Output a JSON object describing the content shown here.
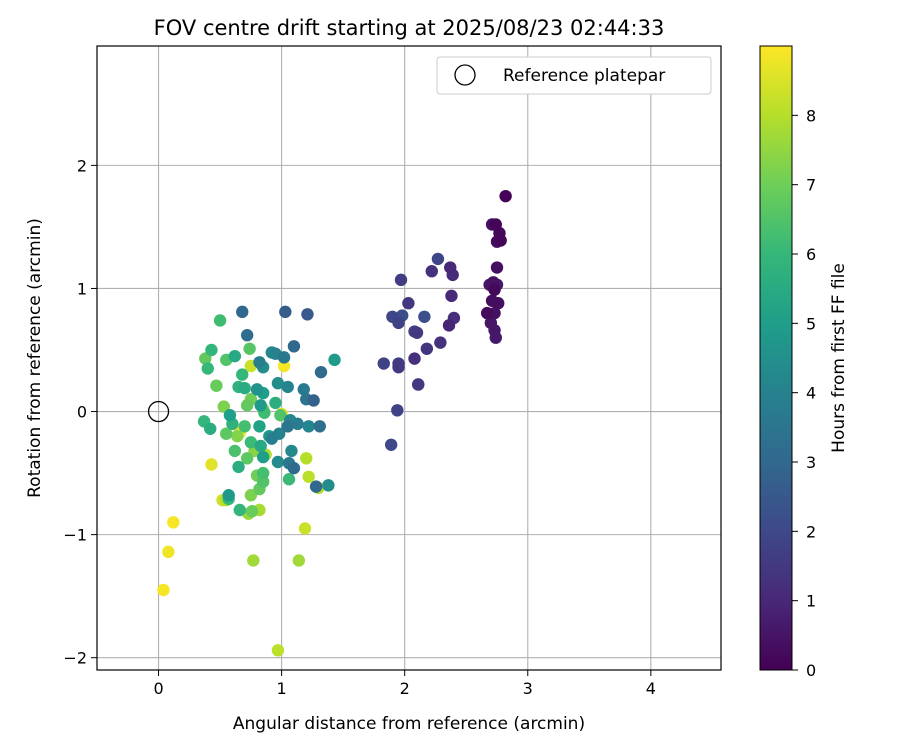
{
  "chart_data": {
    "type": "scatter",
    "title": "FOV centre drift starting at 2025/08/23 02:44:33",
    "xlabel": "Angular distance from reference (arcmin)",
    "ylabel": "Rotation from reference (arcmin)",
    "xlim": [
      -0.5,
      4.57
    ],
    "ylim": [
      -2.1,
      2.97
    ],
    "xticks": [
      "0",
      "1",
      "2",
      "3",
      "4"
    ],
    "yticks": [
      "−2",
      "−1",
      "0",
      "1",
      "2"
    ],
    "xtick_values": [
      0,
      1,
      2,
      3,
      4
    ],
    "ytick_values": [
      -2,
      -1,
      0,
      1,
      2
    ],
    "grid": true,
    "legend": {
      "position": "top-right",
      "entries": [
        {
          "label": "Reference platepar",
          "marker": "open-circle"
        }
      ]
    },
    "reference_point": {
      "x": 0,
      "y": 0
    },
    "colorbar": {
      "label": "Hours from first FF file",
      "colormap": "viridis",
      "range": [
        0,
        9
      ],
      "ticks": [
        "0",
        "1",
        "2",
        "3",
        "4",
        "5",
        "6",
        "7",
        "8"
      ],
      "tick_values": [
        0,
        1,
        2,
        3,
        4,
        5,
        6,
        7,
        8
      ]
    },
    "colormap_stops": [
      "#440154",
      "#482878",
      "#3e4989",
      "#31688e",
      "#26828e",
      "#1f9e89",
      "#35b779",
      "#6ece58",
      "#b5de2b",
      "#fde725"
    ],
    "points": [
      [
        2.82,
        1.75,
        0.05
      ],
      [
        2.74,
        1.52,
        0.1
      ],
      [
        2.71,
        1.52,
        0.4
      ],
      [
        2.77,
        1.45,
        0.2
      ],
      [
        2.78,
        1.39,
        0.15
      ],
      [
        2.75,
        1.38,
        0.3
      ],
      [
        2.75,
        1.17,
        0.35
      ],
      [
        2.72,
        1.05,
        0.45
      ],
      [
        2.69,
        1.03,
        0.5
      ],
      [
        2.75,
        1.03,
        0.6
      ],
      [
        2.73,
        0.99,
        0.2
      ],
      [
        2.71,
        0.9,
        0.3
      ],
      [
        2.76,
        0.88,
        0.35
      ],
      [
        2.73,
        0.8,
        0.4
      ],
      [
        2.67,
        0.8,
        0.25
      ],
      [
        2.7,
        0.72,
        0.5
      ],
      [
        2.73,
        0.66,
        0.55
      ],
      [
        2.74,
        0.6,
        0.6
      ],
      [
        2.27,
        1.24,
        1.9
      ],
      [
        2.22,
        1.14,
        1.3
      ],
      [
        2.37,
        1.17,
        1.0
      ],
      [
        2.39,
        1.11,
        1.1
      ],
      [
        1.97,
        1.07,
        1.6
      ],
      [
        2.38,
        0.94,
        1.0
      ],
      [
        2.03,
        0.88,
        1.4
      ],
      [
        1.9,
        0.77,
        1.9
      ],
      [
        1.98,
        0.78,
        2.1
      ],
      [
        1.95,
        0.72,
        1.8
      ],
      [
        2.16,
        0.77,
        2.2
      ],
      [
        2.4,
        0.76,
        1.2
      ],
      [
        2.36,
        0.7,
        0.9
      ],
      [
        2.08,
        0.65,
        1.7
      ],
      [
        2.1,
        0.64,
        1.5
      ],
      [
        2.29,
        0.56,
        1.3
      ],
      [
        2.18,
        0.51,
        1.4
      ],
      [
        2.08,
        0.43,
        1.2
      ],
      [
        1.95,
        0.39,
        1.6
      ],
      [
        1.95,
        0.36,
        1.5
      ],
      [
        1.83,
        0.39,
        1.8
      ],
      [
        2.11,
        0.22,
        1.5
      ],
      [
        2.11,
        0.22,
        1.7
      ],
      [
        1.94,
        0.01,
        1.8
      ],
      [
        1.89,
        -0.27,
        2.0
      ],
      [
        0.68,
        0.81,
        3.0
      ],
      [
        1.03,
        0.81,
        2.6
      ],
      [
        1.21,
        0.79,
        2.5
      ],
      [
        0.5,
        0.74,
        6.2
      ],
      [
        0.72,
        0.62,
        3.2
      ],
      [
        1.1,
        0.53,
        3.0
      ],
      [
        0.74,
        0.51,
        6.6
      ],
      [
        0.43,
        0.5,
        5.9
      ],
      [
        0.38,
        0.43,
        6.8
      ],
      [
        0.55,
        0.42,
        6.5
      ],
      [
        0.92,
        0.48,
        4.2
      ],
      [
        0.95,
        0.47,
        4.0
      ],
      [
        0.82,
        0.4,
        3.9
      ],
      [
        1.43,
        0.42,
        4.9
      ],
      [
        1.02,
        0.44,
        3.6
      ],
      [
        1.02,
        0.37,
        8.9
      ],
      [
        0.75,
        0.37,
        8.3
      ],
      [
        0.4,
        0.35,
        6.0
      ],
      [
        0.62,
        0.45,
        5.4
      ],
      [
        0.85,
        0.36,
        4.4
      ],
      [
        1.32,
        0.32,
        3.1
      ],
      [
        0.68,
        0.3,
        6.0
      ],
      [
        0.47,
        0.21,
        6.9
      ],
      [
        0.7,
        0.19,
        5.5
      ],
      [
        0.65,
        0.2,
        5.8
      ],
      [
        0.8,
        0.18,
        4.6
      ],
      [
        0.97,
        0.23,
        4.4
      ],
      [
        1.05,
        0.2,
        4.1
      ],
      [
        0.85,
        0.15,
        5.0
      ],
      [
        1.18,
        0.18,
        3.7
      ],
      [
        1.2,
        0.1,
        3.5
      ],
      [
        1.26,
        0.09,
        2.8
      ],
      [
        0.75,
        0.1,
        7.0
      ],
      [
        0.72,
        0.05,
        6.8
      ],
      [
        0.53,
        0.04,
        7.2
      ],
      [
        0.85,
        0.02,
        7.4
      ],
      [
        0.86,
        -0.01,
        6.2
      ],
      [
        0.95,
        0.07,
        5.6
      ],
      [
        0.83,
        0.05,
        4.9
      ],
      [
        1.0,
        -0.02,
        8.6
      ],
      [
        0.99,
        -0.03,
        6.5
      ],
      [
        1.07,
        -0.07,
        4.2
      ],
      [
        1.13,
        -0.1,
        3.8
      ],
      [
        1.22,
        -0.12,
        4.1
      ],
      [
        1.31,
        -0.12,
        3.3
      ],
      [
        0.37,
        -0.08,
        5.9
      ],
      [
        0.42,
        -0.14,
        5.6
      ],
      [
        0.58,
        -0.03,
        5.0
      ],
      [
        0.6,
        -0.1,
        5.8
      ],
      [
        0.7,
        -0.12,
        6.3
      ],
      [
        0.82,
        -0.12,
        5.2
      ],
      [
        0.9,
        -0.2,
        4.8
      ],
      [
        0.98,
        -0.18,
        4.0
      ],
      [
        0.92,
        -0.22,
        3.9
      ],
      [
        1.05,
        -0.12,
        3.5
      ],
      [
        0.55,
        -0.18,
        6.7
      ],
      [
        0.64,
        -0.2,
        7.3
      ],
      [
        0.66,
        -0.17,
        8.7
      ],
      [
        0.75,
        -0.25,
        6.1
      ],
      [
        0.83,
        -0.28,
        5.4
      ],
      [
        1.08,
        -0.32,
        4.2
      ],
      [
        1.06,
        -0.42,
        3.6
      ],
      [
        1.1,
        -0.46,
        3.1
      ],
      [
        0.97,
        -0.41,
        4.3
      ],
      [
        0.85,
        -0.37,
        5.0
      ],
      [
        0.62,
        -0.32,
        6.4
      ],
      [
        0.72,
        -0.38,
        6.7
      ],
      [
        0.78,
        -0.32,
        7.4
      ],
      [
        0.65,
        -0.45,
        5.6
      ],
      [
        0.43,
        -0.43,
        8.6
      ],
      [
        0.87,
        -0.35,
        7.9
      ],
      [
        1.2,
        -0.38,
        8.0
      ],
      [
        1.06,
        -0.55,
        6.1
      ],
      [
        0.8,
        -0.52,
        7.0
      ],
      [
        0.85,
        -0.5,
        6.3
      ],
      [
        0.85,
        -0.57,
        6.5
      ],
      [
        1.22,
        -0.53,
        8.1
      ],
      [
        1.38,
        -0.6,
        4.4
      ],
      [
        1.28,
        -0.61,
        3.0
      ],
      [
        1.3,
        -0.62,
        8.0
      ],
      [
        0.82,
        -0.63,
        6.8
      ],
      [
        0.75,
        -0.68,
        7.2
      ],
      [
        0.57,
        -0.68,
        4.8
      ],
      [
        0.57,
        -0.71,
        5.9
      ],
      [
        0.55,
        -0.72,
        8.0
      ],
      [
        0.52,
        -0.72,
        8.3
      ],
      [
        0.66,
        -0.8,
        5.9
      ],
      [
        0.73,
        -0.83,
        7.6
      ],
      [
        0.76,
        -0.81,
        6.9
      ],
      [
        0.82,
        -0.8,
        7.8
      ],
      [
        1.19,
        -0.95,
        8.3
      ],
      [
        0.12,
        -0.9,
        8.9
      ],
      [
        0.08,
        -1.14,
        8.8
      ],
      [
        0.77,
        -1.21,
        7.7
      ],
      [
        1.14,
        -1.21,
        7.7
      ],
      [
        0.04,
        -1.45,
        8.9
      ],
      [
        0.97,
        -1.94,
        8.1
      ]
    ]
  }
}
